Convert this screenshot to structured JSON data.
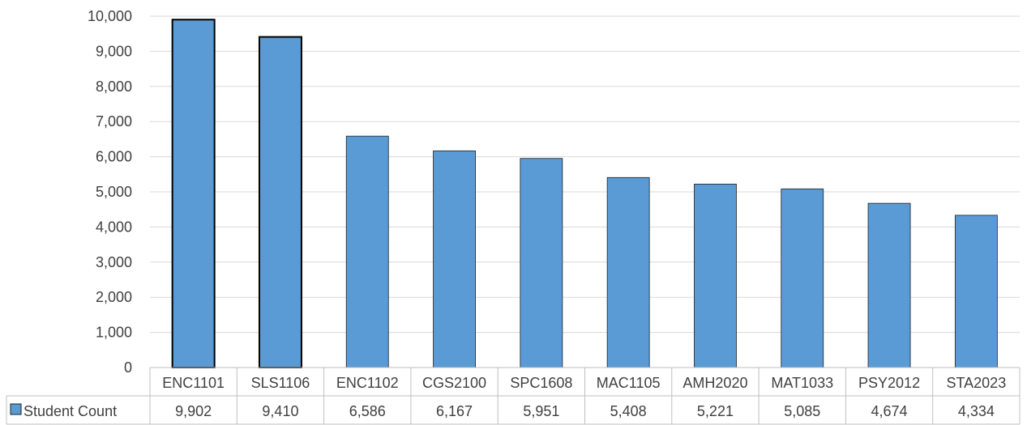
{
  "chart_data": {
    "type": "bar",
    "categories": [
      "ENC1101",
      "SLS1106",
      "ENC1102",
      "CGS2100",
      "SPC1608",
      "MAC1105",
      "AMH2020",
      "MAT1033",
      "PSY2012",
      "STA2023"
    ],
    "series": [
      {
        "name": "Student Count",
        "values": [
          9902,
          9410,
          6586,
          6167,
          5951,
          5408,
          5221,
          5085,
          4674,
          4334
        ],
        "display_values": [
          "9,902",
          "9,410",
          "6,586",
          "6,167",
          "5,951",
          "5,408",
          "5,221",
          "5,085",
          "4,674",
          "4,334"
        ]
      }
    ],
    "ylim": [
      0,
      10000
    ],
    "yticks": [
      0,
      1000,
      2000,
      3000,
      4000,
      5000,
      6000,
      7000,
      8000,
      9000,
      10000
    ],
    "ytick_labels": [
      "0",
      "1,000",
      "2,000",
      "3,000",
      "4,000",
      "5,000",
      "6,000",
      "7,000",
      "8,000",
      "9,000",
      "10,000"
    ],
    "title": "",
    "xlabel": "",
    "ylabel": "",
    "grid": true,
    "legend": "data-table",
    "bar_color": "#5b9bd5",
    "highlighted_bars": [
      0,
      1
    ],
    "highlight_outline_color": "#000000",
    "gridline_color": "#d9d9d9",
    "table_border_color": "#bfbfbf"
  }
}
